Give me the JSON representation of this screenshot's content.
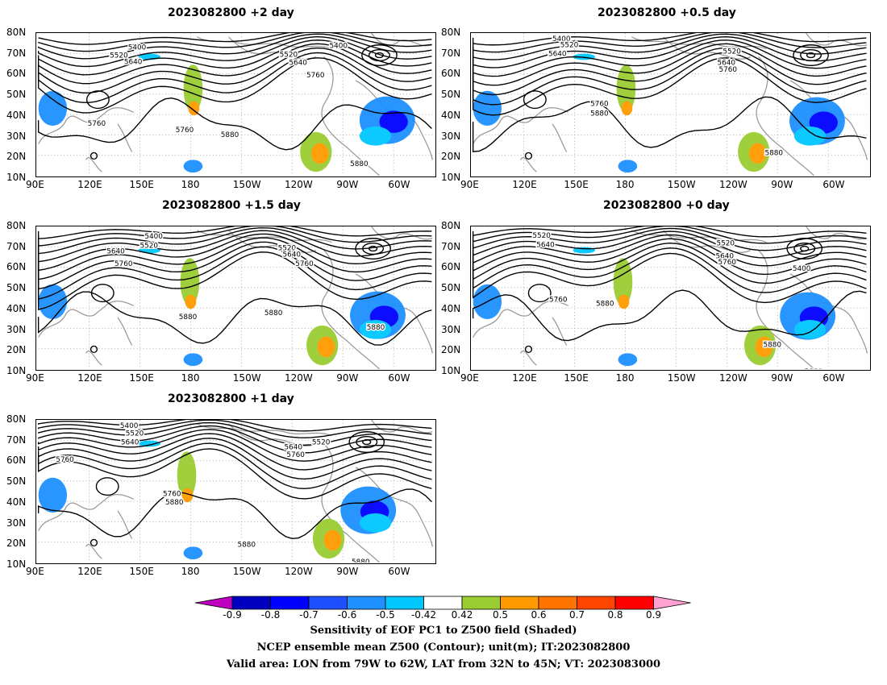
{
  "panels": [
    {
      "id": "p1",
      "title": "2023082800 +2 day"
    },
    {
      "id": "p2",
      "title": "2023082800 +0.5 day"
    },
    {
      "id": "p3",
      "title": "2023082800 +1.5 day"
    },
    {
      "id": "p4",
      "title": "2023082800 +0 day"
    },
    {
      "id": "p5",
      "title": "2023082800 +1 day"
    }
  ],
  "axes": {
    "lat_labels": [
      "80N",
      "70N",
      "60N",
      "50N",
      "40N",
      "30N",
      "20N",
      "10N"
    ],
    "lon_labels": [
      "90E",
      "120E",
      "150E",
      "180",
      "150W",
      "120W",
      "90W",
      "60W"
    ]
  },
  "contour_labels": {
    "p1": [
      "5400",
      "5520",
      "5640",
      "5400",
      "5520",
      "5640",
      "5760",
      "5760",
      "5760",
      "5880",
      "5880"
    ],
    "p2": [
      "5400",
      "5520",
      "5640",
      "5520",
      "5640",
      "5760",
      "5760",
      "5880",
      "5880"
    ],
    "p3": [
      "5400",
      "5520",
      "5640",
      "5760",
      "5520",
      "5640",
      "5760",
      "5880",
      "5880",
      "5880"
    ],
    "p4": [
      "5520",
      "5640",
      "5520",
      "5640",
      "5760",
      "5400",
      "5760",
      "5880",
      "5880",
      "5880"
    ],
    "p5": [
      "5400",
      "5520",
      "5640",
      "5760",
      "5640",
      "5760",
      "5520",
      "5760",
      "5880",
      "5880",
      "5880"
    ]
  },
  "colorbar": {
    "labels": [
      "-0.9",
      "-0.8",
      "-0.7",
      "-0.6",
      "-0.5",
      "-0.42",
      "0.42",
      "0.5",
      "0.6",
      "0.7",
      "0.8",
      "0.9"
    ],
    "colors": [
      "#0000c0",
      "#0000ff",
      "#1e50ff",
      "#1e90ff",
      "#00c8ff",
      "#ffffff",
      "#9acd32",
      "#ff9a00",
      "#ff7300",
      "#ff4500",
      "#ff0000"
    ],
    "low_extend_color": "#c000c0",
    "high_extend_color": "#ffa0d0"
  },
  "caption": {
    "line1": "Sensitivity of EOF PC1 to Z500 field (Shaded)",
    "line2": "NCEP ensemble mean Z500 (Contour); unit(m); IT:2023082800",
    "line3": "Valid area: LON from 79W to 62W, LAT from 32N to 45N; VT: 2023083000"
  }
}
